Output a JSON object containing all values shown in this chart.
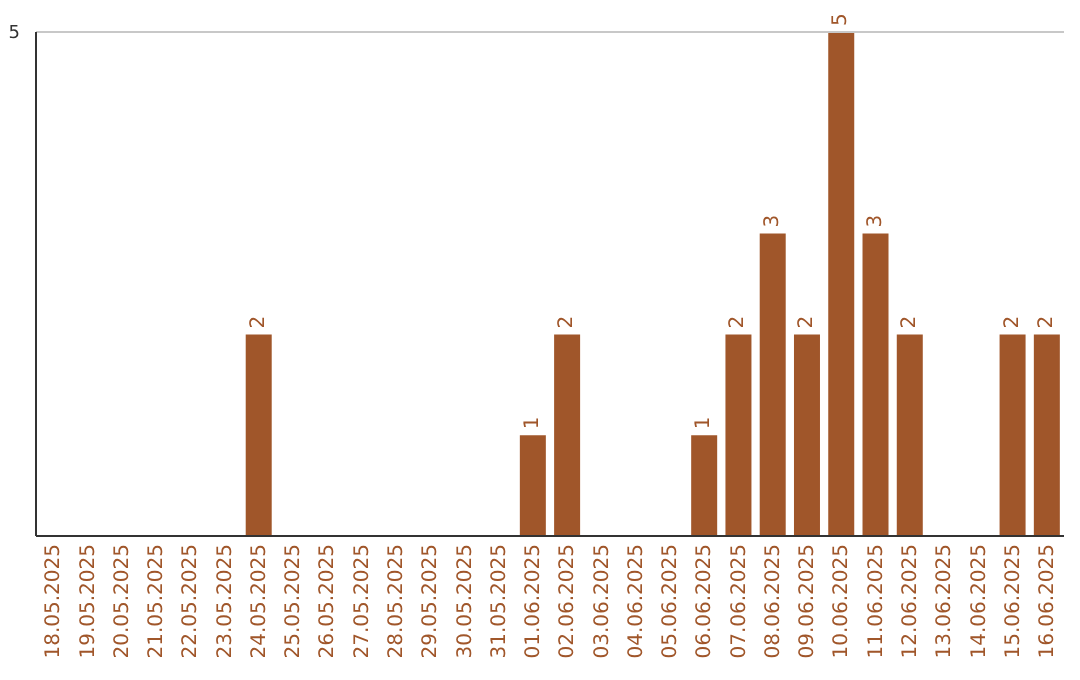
{
  "chart_data": {
    "type": "bar",
    "categories": [
      "18.05.2025",
      "19.05.2025",
      "20.05.2025",
      "21.05.2025",
      "22.05.2025",
      "23.05.2025",
      "24.05.2025",
      "25.05.2025",
      "26.05.2025",
      "27.05.2025",
      "28.05.2025",
      "29.05.2025",
      "30.05.2025",
      "31.05.2025",
      "01.06.2025",
      "02.06.2025",
      "03.06.2025",
      "04.06.2025",
      "05.06.2025",
      "06.06.2025",
      "07.06.2025",
      "08.06.2025",
      "09.06.2025",
      "10.06.2025",
      "11.06.2025",
      "12.06.2025",
      "13.06.2025",
      "14.06.2025",
      "15.06.2025",
      "16.06.2025"
    ],
    "values": [
      null,
      null,
      null,
      null,
      null,
      null,
      2,
      null,
      null,
      null,
      null,
      null,
      null,
      null,
      1,
      2,
      null,
      null,
      null,
      1,
      2,
      3,
      2,
      5,
      3,
      2,
      null,
      null,
      2,
      2
    ],
    "color": "#a0562a",
    "ylim": [
      0,
      5
    ],
    "yticks": [
      5
    ],
    "data_labels": true
  }
}
